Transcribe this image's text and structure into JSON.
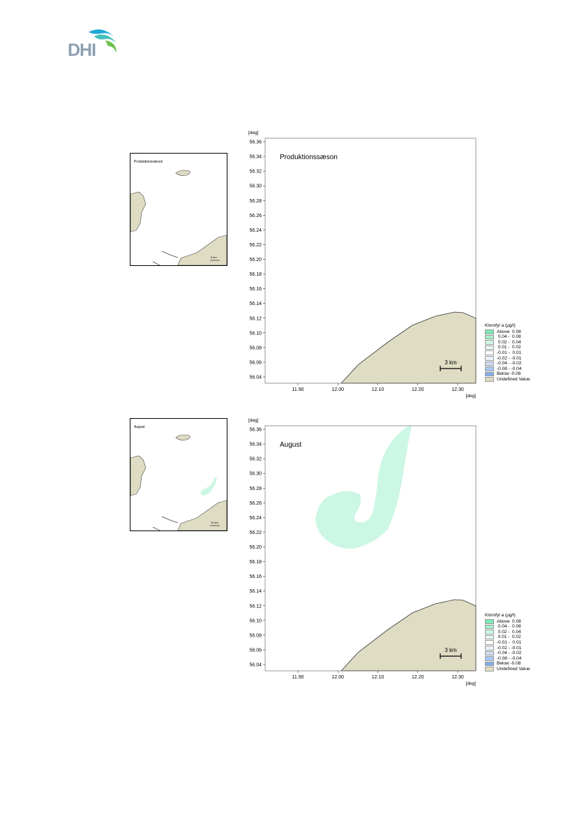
{
  "logo": {
    "text": "DHI"
  },
  "colors": {
    "land": "#dfdcc4",
    "coast": "#333333",
    "plume_green": "#ccf7e4"
  },
  "maps": [
    {
      "overview_label": "Produktionssæson",
      "overview_scale": "5 km",
      "title": "Produktionssæson",
      "y_unit": "[deg]",
      "x_unit": "[deg]",
      "y_ticks": [
        "56.36",
        "56.34",
        "56.32",
        "56.30",
        "56.28",
        "56.26",
        "56.24",
        "56.22",
        "56.20",
        "56.18",
        "56.16",
        "56.14",
        "56.12",
        "56.10",
        "56.08",
        "56.06",
        "56.04"
      ],
      "x_ticks": [
        "11.90",
        "12.00",
        "12.10",
        "12.20",
        "12.30"
      ],
      "scale_bar": "3 km"
    },
    {
      "overview_label": "August",
      "overview_scale": "10 km",
      "title": "August",
      "y_unit": "[deg]",
      "x_unit": "[deg]",
      "y_ticks": [
        "56.36",
        "56.34",
        "56.32",
        "56.30",
        "56.28",
        "56.26",
        "56.24",
        "56.22",
        "56.20",
        "56.18",
        "56.16",
        "56.14",
        "56.12",
        "56.10",
        "56.08",
        "56.06",
        "56.04"
      ],
      "x_ticks": [
        "11.90",
        "12.00",
        "12.10",
        "12.20",
        "12.30"
      ],
      "scale_bar": "3 km"
    }
  ],
  "legend": {
    "title": "Klorofyl a (µg/l)",
    "items": [
      {
        "label": "Above  0.08",
        "color": "#7ee8b6"
      },
      {
        "label": " 0.04 -  0.08",
        "color": "#a5f1ca"
      },
      {
        "label": " 0.02 -  0.04",
        "color": "#ccf7e4"
      },
      {
        "label": " 0.01 -  0.02",
        "color": "#eafbf3"
      },
      {
        "label": "-0.01 -  0.01",
        "color": "#ffffff"
      },
      {
        "label": "-0.02 - -0.01",
        "color": "#eaf1fb"
      },
      {
        "label": "-0.04 - -0.02",
        "color": "#cfe0f7"
      },
      {
        "label": "-0.08 - -0.04",
        "color": "#a9c8f0"
      },
      {
        "label": "Below -0.08",
        "color": "#7eaeea"
      },
      {
        "label": "Undefined Value",
        "color": "#dfdcc4"
      }
    ]
  }
}
